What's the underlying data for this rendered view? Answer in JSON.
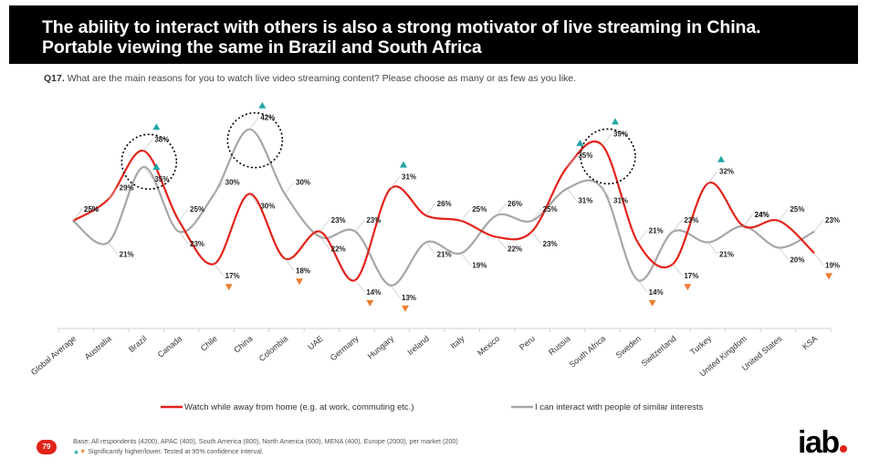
{
  "header": {
    "title_line1": "The ability to interact with others is also a strong motivator of live streaming in China.",
    "title_line2": "Portable viewing the same in Brazil and South Africa"
  },
  "question": {
    "label": "Q17.",
    "text": "What are the main reasons for you to watch live video streaming content? Please choose as many or as few as you like."
  },
  "colors": {
    "series_red": "#e2231a",
    "series_grey": "#a6a6a6",
    "higher_marker": "#1fa7a7",
    "lower_marker": "#ed7d31"
  },
  "chart_data": {
    "type": "line",
    "categories": [
      "Global Average",
      "Australia",
      "Brazil",
      "Canada",
      "Chile",
      "China",
      "Colombia",
      "UAE",
      "Germany",
      "Hungary",
      "Ireland",
      "Italy",
      "Mexico",
      "Peru",
      "Russia",
      "South Africa",
      "Sweden",
      "Switzerland",
      "Turkey",
      "United Kingdom",
      "United States",
      "KSA"
    ],
    "series": [
      {
        "name": "Watch while away from home (e.g. at work, commuting etc.)",
        "color": "#e2231a",
        "values": [
          25,
          29,
          38,
          25,
          17,
          30,
          18,
          23,
          14,
          31,
          26,
          25,
          22,
          23,
          35,
          39,
          21,
          17,
          32,
          24,
          25,
          19
        ],
        "labels": [
          "25%",
          "29%",
          "38%",
          "25%",
          "17%",
          "30%",
          "18%",
          "23%",
          "14%",
          "31%",
          "26%",
          "25%",
          "22%",
          "23%",
          "35%",
          "39%",
          "21%",
          "17%",
          "32%",
          "24%",
          "25%",
          "19%"
        ],
        "significance": [
          "",
          "",
          "higher",
          "",
          "lower",
          "",
          "lower",
          "",
          "lower",
          "higher",
          "",
          "",
          "",
          "",
          "higher",
          "higher",
          "",
          "lower",
          "higher",
          "",
          "",
          "lower"
        ]
      },
      {
        "name": "I can interact with people of similar interests",
        "color": "#a6a6a6",
        "values": [
          25,
          21,
          35,
          23,
          30,
          42,
          30,
          22,
          23,
          13,
          21,
          19,
          26,
          25,
          31,
          31,
          14,
          23,
          21,
          24,
          20,
          23
        ],
        "labels": [
          "25%",
          "21%",
          "35%",
          "23%",
          "30%",
          "42%",
          "30%",
          "22%",
          "23%",
          "13%",
          "21%",
          "19%",
          "26%",
          "25%",
          "31%",
          "31%",
          "14%",
          "23%",
          "21%",
          "24%",
          "20%",
          "23%"
        ],
        "significance": [
          "",
          "",
          "higher",
          "",
          "",
          "higher",
          "",
          "",
          "",
          "lower",
          "",
          "",
          "",
          "",
          "",
          "",
          "lower",
          "",
          "",
          "",
          "",
          ""
        ]
      }
    ],
    "highlighted_categories": [
      "Brazil",
      "China",
      "South Africa"
    ],
    "legend_position": "bottom",
    "grid": false
  },
  "footer": {
    "page_number": "79",
    "base_text": "Base: All respondents (4200), APAC (400), South America (800), North America (600), MENA (400), Europe (2000), per market (200)",
    "significance_text": "Significantly higher/lower. Tested at 95% confidence interval.",
    "logo_text": "iab"
  }
}
